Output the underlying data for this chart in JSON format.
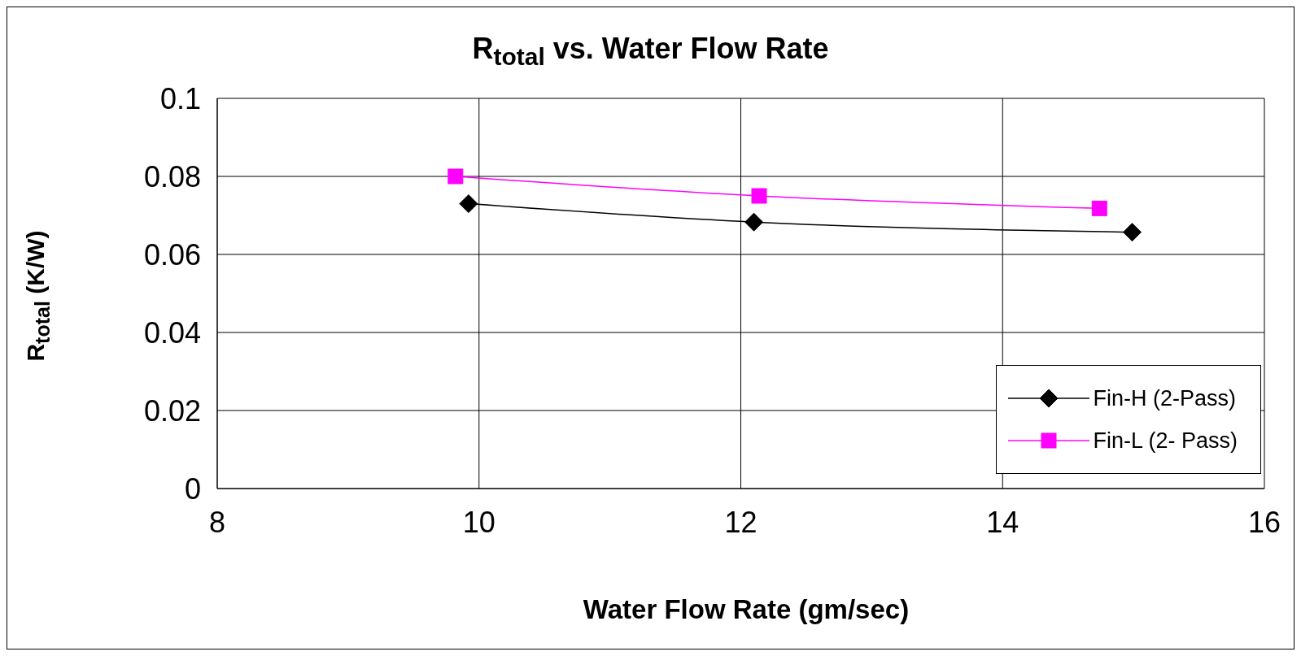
{
  "chart_data": {
    "type": "line",
    "title": "R$_{total}$ vs. Water Flow Rate",
    "xlabel": "Water Flow Rate (gm/sec)",
    "ylabel": "R$_{total}$ (K/W)",
    "series": [
      {
        "name": "Fin-H (2-Pass)",
        "color": "#000000",
        "marker": "diamond",
        "x": [
          9.92,
          12.1,
          14.99
        ],
        "values": [
          0.073,
          0.0683,
          0.0657
        ]
      },
      {
        "name": "Fin-L (2- Pass)",
        "color": "#ff00ff",
        "marker": "square",
        "x": [
          9.82,
          12.14,
          14.74
        ],
        "values": [
          0.08,
          0.075,
          0.0718
        ]
      }
    ],
    "xlim": [
      8,
      16
    ],
    "xticks": [
      8,
      10,
      12,
      14,
      16
    ],
    "ylim": [
      0,
      0.1
    ],
    "yticks": [
      0,
      0.02,
      0.04,
      0.06,
      0.08,
      0.1
    ],
    "grid": true,
    "legend": "bottom right"
  }
}
